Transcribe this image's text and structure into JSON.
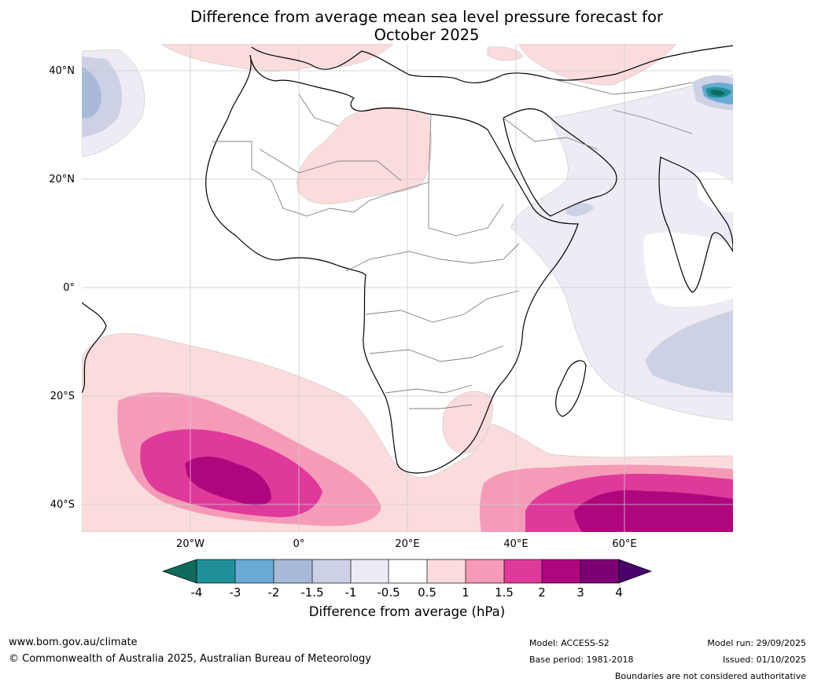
{
  "title_line1": "Difference from average mean sea level pressure forecast for",
  "title_line2": "October 2025",
  "map": {
    "lat_labels": [
      "40°N",
      "20°N",
      "0°",
      "20°S",
      "40°S"
    ],
    "lon_labels": [
      "20°W",
      "0°",
      "20°E",
      "40°E",
      "60°E"
    ]
  },
  "colorbar": {
    "ticks": [
      "-4",
      "-3",
      "-2",
      "-1.5",
      "-1",
      "-0.5",
      "0.5",
      "1",
      "1.5",
      "2",
      "3",
      "4"
    ],
    "title": "Difference from average (hPa)",
    "colors": [
      "#0f6b5c",
      "#1f9098",
      "#6aaad4",
      "#a7bbd8",
      "#cdd1e5",
      "#eeebf4",
      "#ffffff",
      "#fbdcdc",
      "#f59bb8",
      "#df3a9b",
      "#b0067d",
      "#7b0072",
      "#4a006a"
    ]
  },
  "footer": {
    "website": "www.bom.gov.au/climate",
    "copyright": "© Commonwealth of Australia 2025, Australian Bureau of Meteorology",
    "model": "Model: ACCESS-S2",
    "base_period": "Base period: 1981-2018",
    "model_run": "Model run: 29/09/2025",
    "issued": "Issued: 01/10/2025",
    "disclaimer": "Boundaries are not considered authoritative"
  }
}
